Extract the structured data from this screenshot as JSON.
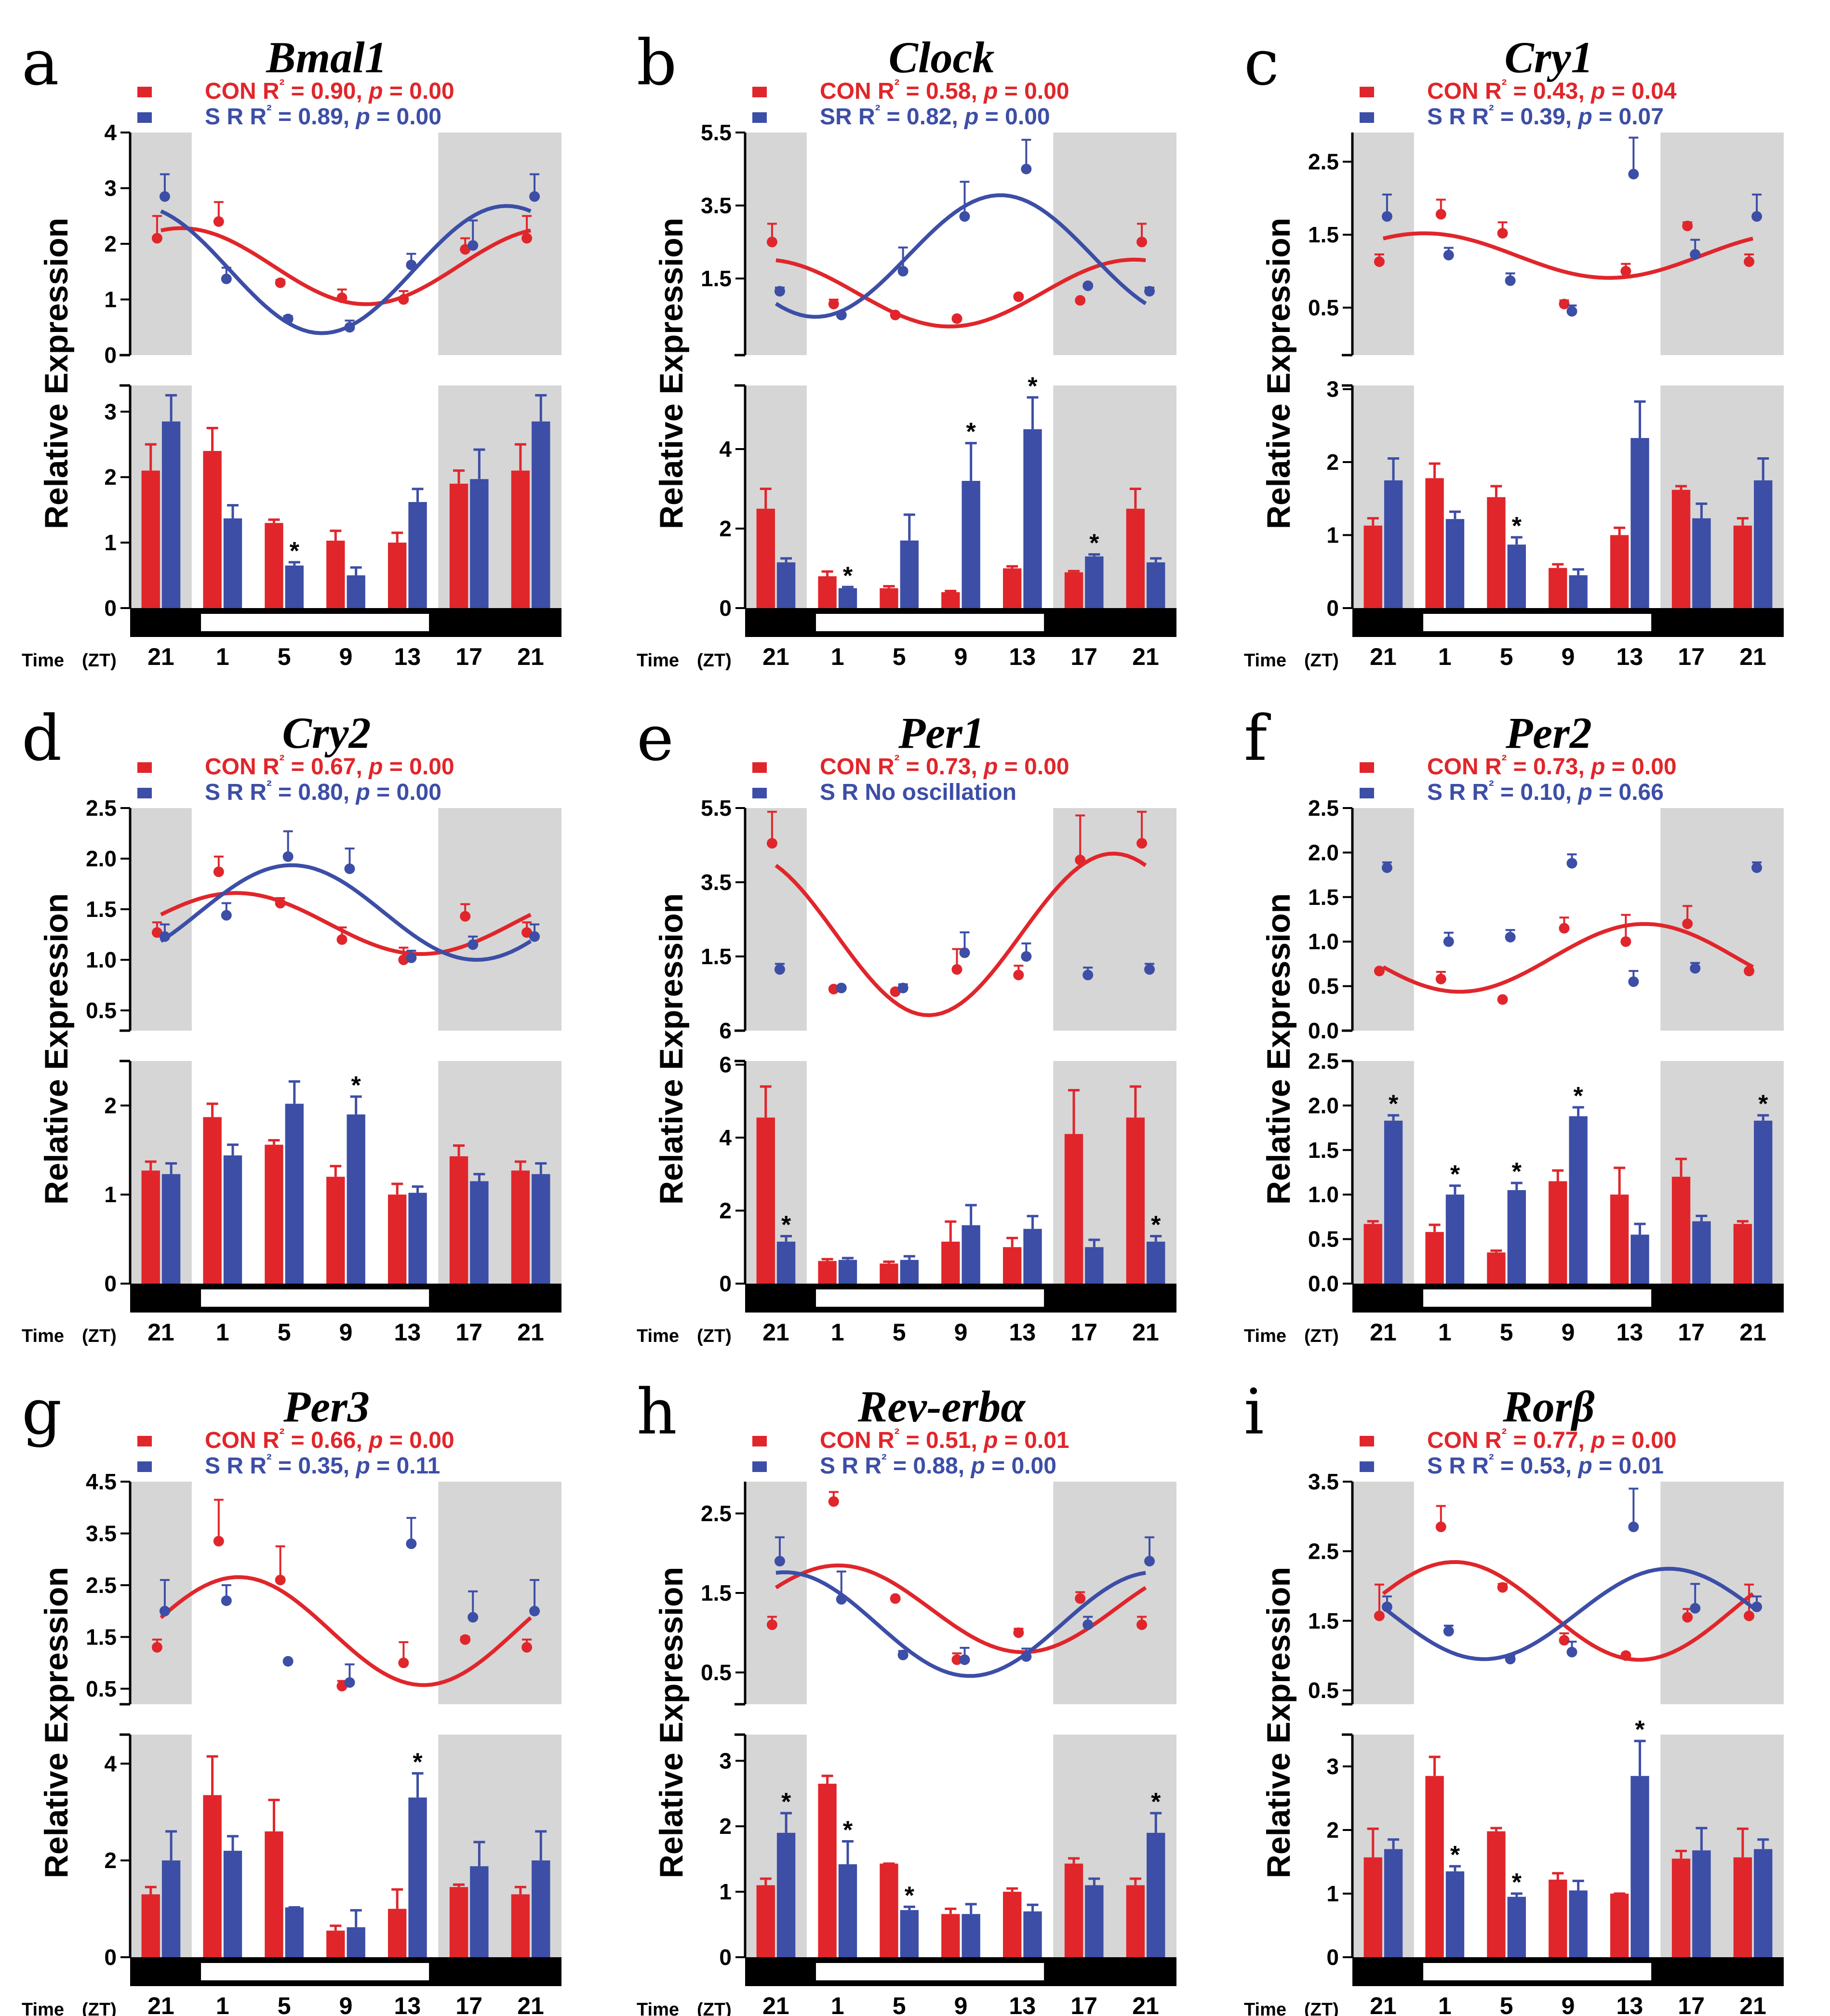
{
  "figure": {
    "colors": {
      "con": "#e0262b",
      "sr": "#3c4ea6",
      "shade": "#d6d6d6",
      "axis": "#000000"
    },
    "time_label": "Time",
    "time_unit": "(ZT)",
    "ylabel": "Relative Expression"
  },
  "chart_data": [
    {
      "type": "bar",
      "letter": "a",
      "gene": "Bmal1",
      "legend": {
        "con": "CON R² = 0.90, p = 0.00",
        "sr": "S   R R² = 0.89, p = 0.00"
      },
      "categories": [
        "21",
        "1",
        "5",
        "9",
        "13",
        "17",
        "21"
      ],
      "top": {
        "ylim": [
          0,
          4
        ],
        "ticks": [
          "4",
          "3",
          "2",
          "1",
          "0"
        ]
      },
      "bottom": {
        "ylim": [
          0,
          3.4
        ],
        "ticks": [
          "3",
          "2",
          "1",
          "0"
        ]
      },
      "series": [
        {
          "name": "CON",
          "values": [
            2.1,
            2.4,
            1.3,
            1.03,
            1.0,
            1.9,
            2.1
          ],
          "errors": [
            0.4,
            0.35,
            0.05,
            0.15,
            0.15,
            0.2,
            0.4
          ]
        },
        {
          "name": "SR",
          "values": [
            2.85,
            1.37,
            0.65,
            0.5,
            1.62,
            1.97,
            2.85
          ],
          "errors": [
            0.4,
            0.2,
            0.05,
            0.12,
            0.2,
            0.45,
            0.4
          ]
        }
      ],
      "significant": [
        2
      ],
      "fits": {
        "con": true,
        "sr": true
      }
    },
    {
      "type": "bar",
      "letter": "b",
      "gene": "Clock",
      "legend": {
        "con": "CON R² = 0.58, p = 0.00",
        "sr": "SR    R² = 0.82, p = 0.00"
      },
      "categories": [
        "21",
        "1",
        "5",
        "9",
        "13",
        "17",
        "21"
      ],
      "top": {
        "ylim": [
          -0.6,
          5.5
        ],
        "ticks": [
          "5.5",
          "3.5",
          "1.5"
        ]
      },
      "bottom": {
        "ylim": [
          0,
          5.6
        ],
        "ticks": [
          "4",
          "2",
          "0"
        ]
      },
      "series": [
        {
          "name": "CON",
          "values": [
            2.5,
            0.8,
            0.5,
            0.4,
            1.0,
            0.9,
            2.5
          ],
          "errors": [
            0.5,
            0.12,
            0.05,
            0.03,
            0.05,
            0.03,
            0.5
          ]
        },
        {
          "name": "SR",
          "values": [
            1.15,
            0.5,
            1.7,
            3.2,
            4.5,
            1.3,
            1.15
          ],
          "errors": [
            0.1,
            0.03,
            0.65,
            0.95,
            0.8,
            0.05,
            0.1
          ]
        }
      ],
      "significant": [
        1,
        3,
        4,
        5
      ],
      "fits": {
        "con": true,
        "sr": true
      }
    },
    {
      "type": "bar",
      "letter": "c",
      "gene": "Cry1",
      "legend": {
        "con": "CON R² = 0.43, p = 0.04",
        "sr": "S   R R² = 0.39, p = 0.07"
      },
      "categories": [
        "21",
        "1",
        "5",
        "9",
        "13",
        "17",
        "21"
      ],
      "top": {
        "ylim": [
          -0.15,
          2.9
        ],
        "ticks": [
          "2.5",
          "1.5",
          "0.5"
        ]
      },
      "bottom": {
        "ylim": [
          0,
          3.05
        ],
        "ticks": [
          "3",
          "2",
          "1",
          "0"
        ]
      },
      "series": [
        {
          "name": "CON",
          "values": [
            1.13,
            1.78,
            1.52,
            0.55,
            1.0,
            1.62,
            1.13
          ],
          "errors": [
            0.1,
            0.2,
            0.15,
            0.05,
            0.1,
            0.05,
            0.1
          ]
        },
        {
          "name": "SR",
          "values": [
            1.75,
            1.22,
            0.87,
            0.45,
            2.33,
            1.23,
            1.75
          ],
          "errors": [
            0.3,
            0.1,
            0.1,
            0.08,
            0.5,
            0.2,
            0.3
          ]
        }
      ],
      "significant": [
        2
      ],
      "fits": {
        "con": true,
        "sr": false
      }
    },
    {
      "type": "bar",
      "letter": "d",
      "gene": "Cry2",
      "legend": {
        "con": "CON R² = 0.67, p = 0.00",
        "sr": "S   R R² = 0.80, p = 0.00"
      },
      "categories": [
        "21",
        "1",
        "5",
        "9",
        "13",
        "17",
        "21"
      ],
      "top": {
        "ylim": [
          0.3,
          2.5
        ],
        "ticks": [
          "2.5",
          "2.0",
          "1.5",
          "1.0",
          "0.5"
        ]
      },
      "bottom": {
        "ylim": [
          0,
          2.5
        ],
        "ticks": [
          "2",
          "1",
          "0"
        ]
      },
      "series": [
        {
          "name": "CON",
          "values": [
            1.27,
            1.87,
            1.56,
            1.2,
            1.0,
            1.43,
            1.27
          ],
          "errors": [
            0.1,
            0.15,
            0.05,
            0.12,
            0.12,
            0.12,
            0.1
          ]
        },
        {
          "name": "SR",
          "values": [
            1.23,
            1.44,
            2.02,
            1.9,
            1.02,
            1.15,
            1.23
          ],
          "errors": [
            0.12,
            0.12,
            0.25,
            0.2,
            0.07,
            0.08,
            0.12
          ]
        }
      ],
      "significant": [
        3
      ],
      "fits": {
        "con": true,
        "sr": true
      }
    },
    {
      "type": "bar",
      "letter": "e",
      "gene": "Per1",
      "legend": {
        "con": "CON R² = 0.73, p = 0.00",
        "sr": "S   R  No oscillation"
      },
      "categories": [
        "21",
        "1",
        "5",
        "9",
        "13",
        "17",
        "21"
      ],
      "top": {
        "ylim": [
          -0.5,
          5.5
        ],
        "ticks": [
          "5.5",
          "3.5",
          "1.5",
          "6"
        ]
      },
      "bottom": {
        "ylim": [
          0,
          6.1
        ],
        "ticks": [
          "6",
          "4",
          "2",
          "0"
        ]
      },
      "series": [
        {
          "name": "CON",
          "values": [
            4.55,
            0.62,
            0.55,
            1.15,
            1.0,
            4.1,
            4.55
          ],
          "errors": [
            0.85,
            0.05,
            0.05,
            0.55,
            0.25,
            1.2,
            0.85
          ]
        },
        {
          "name": "SR",
          "values": [
            1.15,
            0.65,
            0.65,
            1.6,
            1.5,
            1.0,
            1.15
          ],
          "errors": [
            0.15,
            0.05,
            0.1,
            0.55,
            0.35,
            0.2,
            0.15
          ]
        }
      ],
      "significant": [
        0,
        6
      ],
      "fits": {
        "con": true,
        "sr": false
      }
    },
    {
      "type": "bar",
      "letter": "f",
      "gene": "Per2",
      "legend": {
        "con": "CON R² = 0.73, p = 0.00",
        "sr": "S   R R² = 0.10, p = 0.66"
      },
      "categories": [
        "21",
        "1",
        "5",
        "9",
        "13",
        "17",
        "21"
      ],
      "top": {
        "ylim": [
          0,
          2.5
        ],
        "ticks": [
          "2.5",
          "2.0",
          "1.5",
          "1.0",
          "0.5",
          "0.0"
        ]
      },
      "bottom": {
        "ylim": [
          0,
          2.5
        ],
        "ticks": [
          "2.5",
          "2.0",
          "1.5",
          "1.0",
          "0.5",
          "0.0"
        ]
      },
      "series": [
        {
          "name": "CON",
          "values": [
            0.67,
            0.58,
            0.35,
            1.15,
            1.0,
            1.2,
            0.67
          ],
          "errors": [
            0.03,
            0.08,
            0.02,
            0.12,
            0.3,
            0.2,
            0.03
          ]
        },
        {
          "name": "SR",
          "values": [
            1.83,
            1.0,
            1.05,
            1.88,
            0.55,
            0.7,
            1.83
          ],
          "errors": [
            0.06,
            0.1,
            0.08,
            0.1,
            0.12,
            0.06,
            0.06
          ]
        }
      ],
      "significant": [
        0,
        1,
        2,
        3,
        6
      ],
      "fits": {
        "con": true,
        "sr": false
      }
    },
    {
      "type": "bar",
      "letter": "g",
      "gene": "Per3",
      "legend": {
        "con": "CON R² = 0.66, p = 0.00",
        "sr": "S   R R² = 0.35, p = 0.11"
      },
      "categories": [
        "21",
        "1",
        "5",
        "9",
        "13",
        "17",
        "21"
      ],
      "top": {
        "ylim": [
          0.2,
          4.5
        ],
        "ticks": [
          "4.5",
          "3.5",
          "2.5",
          "1.5",
          "0.5"
        ]
      },
      "bottom": {
        "ylim": [
          0,
          4.6
        ],
        "ticks": [
          "4",
          "2",
          "0"
        ]
      },
      "series": [
        {
          "name": "CON",
          "values": [
            1.3,
            3.35,
            2.6,
            0.55,
            1.0,
            1.45,
            1.3
          ],
          "errors": [
            0.15,
            0.8,
            0.65,
            0.1,
            0.4,
            0.05,
            0.15
          ]
        },
        {
          "name": "SR",
          "values": [
            2.0,
            2.2,
            1.03,
            0.62,
            3.3,
            1.88,
            2.0
          ],
          "errors": [
            0.6,
            0.3,
            0.0,
            0.35,
            0.5,
            0.5,
            0.6
          ]
        }
      ],
      "significant": [
        4
      ],
      "fits": {
        "con": true,
        "sr": false
      }
    },
    {
      "type": "bar",
      "letter": "h",
      "gene": "Rev-erbα",
      "legend": {
        "con": "CON R² = 0.51, p = 0.01",
        "sr": "S   R R² = 0.88, p = 0.00"
      },
      "categories": [
        "21",
        "1",
        "5",
        "9",
        "13",
        "17",
        "21"
      ],
      "top": {
        "ylim": [
          0.1,
          2.9
        ],
        "ticks": [
          "2.5",
          "1.5",
          "0.5"
        ]
      },
      "bottom": {
        "ylim": [
          0,
          3.4
        ],
        "ticks": [
          "3",
          "2",
          "1",
          "0"
        ]
      },
      "series": [
        {
          "name": "CON",
          "values": [
            1.1,
            2.65,
            1.43,
            0.66,
            1.0,
            1.43,
            1.1
          ],
          "errors": [
            0.1,
            0.12,
            0.0,
            0.08,
            0.05,
            0.08,
            0.1
          ]
        },
        {
          "name": "SR",
          "values": [
            1.9,
            1.42,
            0.72,
            0.66,
            0.7,
            1.1,
            1.9
          ],
          "errors": [
            0.3,
            0.35,
            0.05,
            0.15,
            0.1,
            0.1,
            0.3
          ]
        }
      ],
      "significant": [
        0,
        1,
        2,
        6
      ],
      "fits": {
        "con": true,
        "sr": true
      }
    },
    {
      "type": "bar",
      "letter": "i",
      "gene": "Rorβ",
      "legend": {
        "con": "CON R² = 0.77, p = 0.00",
        "sr": "S   R R² = 0.53, p = 0.01"
      },
      "categories": [
        "21",
        "1",
        "5",
        "9",
        "13",
        "17",
        "21"
      ],
      "top": {
        "ylim": [
          0.3,
          3.5
        ],
        "ticks": [
          "3.5",
          "2.5",
          "1.5",
          "0.5"
        ]
      },
      "bottom": {
        "ylim": [
          0,
          3.5
        ],
        "ticks": [
          "3",
          "2",
          "1",
          "0"
        ]
      },
      "series": [
        {
          "name": "CON",
          "values": [
            1.57,
            2.85,
            1.98,
            1.22,
            1.0,
            1.55,
            1.57
          ],
          "errors": [
            0.45,
            0.3,
            0.05,
            0.1,
            0.0,
            0.12,
            0.45
          ]
        },
        {
          "name": "SR",
          "values": [
            1.7,
            1.35,
            0.95,
            1.05,
            2.85,
            1.68,
            1.7
          ],
          "errors": [
            0.15,
            0.08,
            0.05,
            0.15,
            0.55,
            0.35,
            0.15
          ]
        }
      ],
      "significant": [
        1,
        2,
        4
      ],
      "fits": {
        "con": true,
        "sr": true
      }
    }
  ]
}
